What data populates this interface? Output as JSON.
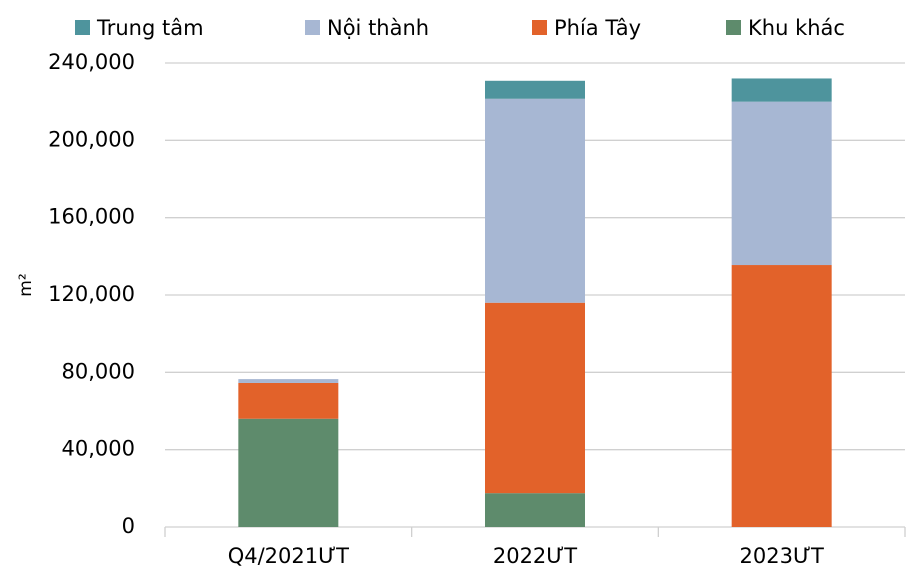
{
  "chart_data": {
    "type": "stacked_bar",
    "y_label": "m²",
    "categories": [
      "Q4/2021ƯT",
      "2022ƯT",
      "2023ƯT"
    ],
    "series": [
      {
        "name": "Trung tâm",
        "color": "#4e949d",
        "values": [
          0,
          9300,
          12000
        ]
      },
      {
        "name": "Nội thành",
        "color": "#a7b7d3",
        "values": [
          2000,
          105500,
          84500
        ]
      },
      {
        "name": "Phía Tây",
        "color": "#e2622a",
        "values": [
          18500,
          98500,
          135500
        ]
      },
      {
        "name": "Khu khác",
        "color": "#5e8b6c",
        "values": [
          56000,
          17500,
          0
        ]
      }
    ],
    "ylim": [
      0,
      240000
    ],
    "yticks": [
      0,
      {
        "value": 40000,
        "label": "40,000"
      },
      {
        "value": 80000,
        "label": "80,000"
      },
      {
        "value": 120000,
        "label": "120,000"
      },
      {
        "value": 160000,
        "label": "160,000"
      },
      {
        "value": 200000,
        "label": "200,000"
      },
      {
        "value": 240000,
        "label": "240,000"
      }
    ],
    "grid": true
  }
}
